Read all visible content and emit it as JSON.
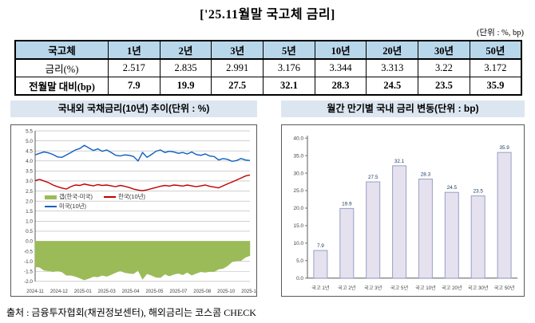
{
  "title": "['25.11월말 국고체 금리]",
  "unit_note": "(단위 : %, bp)",
  "table": {
    "header": [
      "국고체",
      "1년",
      "2년",
      "3년",
      "5년",
      "10년",
      "20년",
      "30년",
      "50년"
    ],
    "rows": [
      {
        "label": "금리(%)",
        "values": [
          "2.517",
          "2.835",
          "2.991",
          "3.176",
          "3.344",
          "3.313",
          "3.22",
          "3.172"
        ]
      },
      {
        "label": "전월말 대비(bp)",
        "values": [
          "7.9",
          "19.9",
          "27.5",
          "32.1",
          "28.3",
          "24.5",
          "23.5",
          "35.9"
        ]
      }
    ]
  },
  "source": "출처 : 금융투자협회(채권정보센터), 해외금리는 코스콤 CHECK",
  "colors": {
    "table_header_bg": "#b9d7ea",
    "chart_title_bg": "#dce6f1",
    "gap_green": "#9bbb59",
    "korea_red": "#c00000",
    "us_blue": "#1060c0",
    "bar_fill": "#e6e1ee",
    "bar_stroke": "#95a0c5",
    "gridline": "#b3b3b3"
  },
  "chart_data": [
    {
      "type": "line",
      "title": "국내외 국채금리(10년) 추이(단위 : %)",
      "ylim": [
        -2.0,
        5.5
      ],
      "ytick_step": 0.5,
      "grid": true,
      "legend_position": "inside-bottom-left",
      "x_tick_labels": [
        "2024-11",
        "2024-12",
        "2025-01",
        "2025-03",
        "2025-04",
        "2025-05",
        "2025-07",
        "2025-08",
        "2025-10",
        "2025-11"
      ],
      "series": [
        {
          "name": "갭(한국-미국)",
          "kind": "area",
          "color": "#9bbb59",
          "values": [
            -1.28,
            -1.3,
            -1.45,
            -1.48,
            -1.52,
            -1.48,
            -1.53,
            -1.7,
            -1.7,
            -1.75,
            -1.84,
            -1.93,
            -1.85,
            -1.76,
            -1.78,
            -1.7,
            -1.75,
            -1.66,
            -1.56,
            -1.47,
            -1.56,
            -1.6,
            -1.62,
            -1.45,
            -1.9,
            -1.62,
            -1.7,
            -1.8,
            -1.81,
            -1.64,
            -1.73,
            -1.65,
            -1.6,
            -1.67,
            -1.55,
            -1.69,
            -1.6,
            -1.52,
            -1.55,
            -1.51,
            -1.52,
            -1.39,
            -1.36,
            -1.22,
            -1.03,
            -0.97,
            -0.97,
            -0.8,
            -0.72
          ]
        },
        {
          "name": "한국(10년)",
          "kind": "line",
          "color": "#c00000",
          "values": [
            3.02,
            3.08,
            3.0,
            2.92,
            2.8,
            2.72,
            2.65,
            2.6,
            2.72,
            2.8,
            2.78,
            2.85,
            2.8,
            2.76,
            2.82,
            2.78,
            2.8,
            2.76,
            2.72,
            2.78,
            2.74,
            2.68,
            2.6,
            2.55,
            2.52,
            2.56,
            2.62,
            2.68,
            2.74,
            2.78,
            2.75,
            2.8,
            2.78,
            2.75,
            2.8,
            2.76,
            2.72,
            2.76,
            2.8,
            2.74,
            2.7,
            2.66,
            2.76,
            2.86,
            2.95,
            3.05,
            3.15,
            3.25,
            3.3
          ]
        },
        {
          "name": "미국(10년)",
          "kind": "line",
          "color": "#1060c0",
          "values": [
            4.3,
            4.38,
            4.45,
            4.4,
            4.32,
            4.2,
            4.18,
            4.3,
            4.42,
            4.55,
            4.62,
            4.78,
            4.65,
            4.52,
            4.6,
            4.48,
            4.55,
            4.42,
            4.28,
            4.25,
            4.3,
            4.28,
            4.22,
            4.0,
            4.42,
            4.18,
            4.32,
            4.48,
            4.55,
            4.42,
            4.48,
            4.45,
            4.38,
            4.42,
            4.35,
            4.45,
            4.32,
            4.28,
            4.35,
            4.25,
            4.22,
            4.05,
            4.12,
            4.08,
            3.98,
            4.02,
            4.12,
            4.05,
            4.02
          ]
        }
      ]
    },
    {
      "type": "bar",
      "title": "월간 만기별 국내 금리 변동(단위 : bp)",
      "categories": [
        "국고 1년",
        "국고 2년",
        "국고 3년",
        "국고 5년",
        "국고 10년",
        "국고 20년",
        "국고 30년",
        "국고 50년"
      ],
      "values": [
        7.9,
        19.9,
        27.5,
        32.1,
        28.3,
        24.5,
        23.5,
        35.9
      ],
      "ylim": [
        0,
        40
      ],
      "ytick_step": 5,
      "grid": false,
      "bar_fill": "#e6e1ee",
      "bar_stroke": "#95a0c5"
    }
  ]
}
